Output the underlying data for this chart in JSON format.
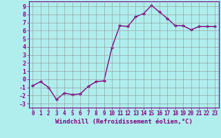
{
  "x": [
    0,
    1,
    2,
    3,
    4,
    5,
    6,
    7,
    8,
    9,
    10,
    11,
    12,
    13,
    14,
    15,
    16,
    17,
    18,
    19,
    20,
    21,
    22,
    23
  ],
  "y": [
    -0.8,
    -0.3,
    -1.0,
    -2.5,
    -1.7,
    -1.9,
    -1.8,
    -0.9,
    -0.3,
    -0.2,
    3.9,
    6.6,
    6.5,
    7.7,
    8.1,
    9.1,
    8.3,
    7.5,
    6.6,
    6.6,
    6.1,
    6.5,
    6.5,
    6.5
  ],
  "line_color": "#800080",
  "marker": "D",
  "marker_size": 2.0,
  "linewidth": 1.0,
  "bg_color": "#b0eeee",
  "grid_color": "#909090",
  "xlabel": "Windchill (Refroidissement éolien,°C)",
  "xlabel_color": "#800080",
  "tick_color": "#800080",
  "ylabel_ticks": [
    9,
    8,
    7,
    6,
    5,
    4,
    3,
    2,
    1,
    0,
    -1,
    -2,
    -3
  ],
  "xlim": [
    -0.5,
    23.5
  ],
  "ylim": [
    -3.5,
    9.6
  ]
}
